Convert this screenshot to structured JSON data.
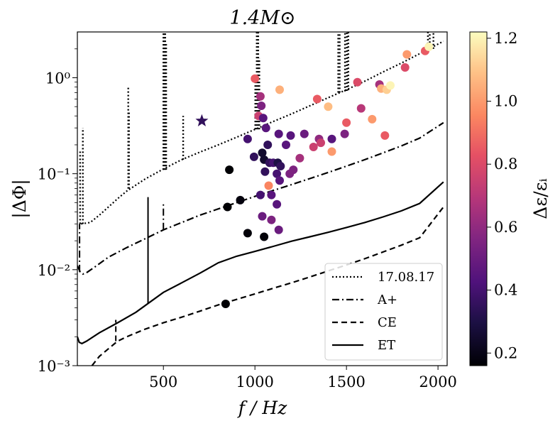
{
  "chart_data": {
    "type": "scatter",
    "title": "1.4M⊙",
    "xlabel": "f / Hz",
    "ylabel": "|ΔΦ|",
    "colorbar_label": "Δε/εᵢ",
    "xlim": [
      30,
      2050
    ],
    "ylim": [
      0.001,
      3.0
    ],
    "yscale": "log",
    "grid": false,
    "legend_location": "lower-right",
    "x_ticks": [
      500,
      1000,
      1500,
      2000
    ],
    "x_tick_labels": [
      "500",
      "1000",
      "1500",
      "2000"
    ],
    "y_ticks": [
      0.001,
      0.01,
      0.1,
      1.0
    ],
    "y_tick_labels": [
      "10⁻³",
      "10⁻²",
      "10⁻¹",
      "10⁰"
    ],
    "colorbar": {
      "colormap": "magma",
      "range": [
        0.16,
        1.22
      ],
      "ticks": [
        0.2,
        0.4,
        0.6,
        0.8,
        1.0,
        1.2
      ],
      "tick_labels": [
        "0.2",
        "0.4",
        "0.6",
        "0.8",
        "1.0",
        "1.2"
      ]
    },
    "curves": [
      {
        "name": "17.08.17",
        "style": "dotted",
        "points": [
          [
            50,
            0.03
          ],
          [
            100,
            0.031
          ],
          [
            150,
            0.037
          ],
          [
            200,
            0.045
          ],
          [
            250,
            0.055
          ],
          [
            300,
            0.066
          ],
          [
            400,
            0.088
          ],
          [
            500,
            0.112
          ],
          [
            600,
            0.14
          ],
          [
            700,
            0.168
          ],
          [
            800,
            0.2
          ],
          [
            900,
            0.24
          ],
          [
            1000,
            0.29
          ],
          [
            1100,
            0.35
          ],
          [
            1200,
            0.42
          ],
          [
            1300,
            0.51
          ],
          [
            1400,
            0.62
          ],
          [
            1500,
            0.75
          ],
          [
            1600,
            0.92
          ],
          [
            1700,
            1.15
          ],
          [
            1800,
            1.42
          ],
          [
            1900,
            1.78
          ],
          [
            2030,
            2.4
          ]
        ],
        "spikes": [
          {
            "x": 45,
            "base": 0.03,
            "top": 0.17
          },
          {
            "x": 60,
            "base": 0.03,
            "top": 0.3
          },
          {
            "x": 308,
            "base": 0.07,
            "top": 0.8
          },
          {
            "x": 312,
            "base": 0.07,
            "top": 0.45
          },
          {
            "x": 500,
            "base": 0.11,
            "top": 3.0
          },
          {
            "x": 505,
            "base": 0.11,
            "top": 3.0
          },
          {
            "x": 510,
            "base": 0.11,
            "top": 3.0
          },
          {
            "x": 515,
            "base": 0.11,
            "top": 2.3
          },
          {
            "x": 608,
            "base": 0.14,
            "top": 0.4
          },
          {
            "x": 1002,
            "base": 0.29,
            "top": 1.0
          },
          {
            "x": 1010,
            "base": 0.29,
            "top": 3.0
          },
          {
            "x": 1018,
            "base": 0.29,
            "top": 3.0
          },
          {
            "x": 1024,
            "base": 0.29,
            "top": 1.6
          },
          {
            "x": 1455,
            "base": 0.7,
            "top": 3.0
          },
          {
            "x": 1463,
            "base": 0.7,
            "top": 3.0
          },
          {
            "x": 1492,
            "base": 0.72,
            "top": 3.0
          },
          {
            "x": 1502,
            "base": 0.73,
            "top": 3.0
          },
          {
            "x": 1510,
            "base": 0.74,
            "top": 3.0
          },
          {
            "x": 1945,
            "base": 1.9,
            "top": 3.0
          },
          {
            "x": 1955,
            "base": 1.95,
            "top": 3.0
          },
          {
            "x": 1975,
            "base": 2.0,
            "top": 3.0
          }
        ]
      },
      {
        "name": "A+",
        "style": "dashdot",
        "points": [
          [
            30,
            0.011
          ],
          [
            45,
            0.0095
          ],
          [
            60,
            0.009
          ],
          [
            80,
            0.0093
          ],
          [
            120,
            0.0105
          ],
          [
            200,
            0.0135
          ],
          [
            300,
            0.017
          ],
          [
            400,
            0.021
          ],
          [
            500,
            0.026
          ],
          [
            600,
            0.031
          ],
          [
            700,
            0.037
          ],
          [
            800,
            0.043
          ],
          [
            900,
            0.05
          ],
          [
            1000,
            0.058
          ],
          [
            1100,
            0.067
          ],
          [
            1200,
            0.077
          ],
          [
            1300,
            0.089
          ],
          [
            1400,
            0.103
          ],
          [
            1500,
            0.12
          ],
          [
            1600,
            0.14
          ],
          [
            1700,
            0.165
          ],
          [
            1800,
            0.195
          ],
          [
            1900,
            0.235
          ],
          [
            2030,
            0.34
          ]
        ],
        "spikes": [
          {
            "x": 42,
            "base": 0.0095,
            "top": 0.03
          },
          {
            "x": 500,
            "base": 0.026,
            "top": 0.05
          }
        ]
      },
      {
        "name": "CE",
        "style": "dashed",
        "points": [
          [
            110,
            0.001
          ],
          [
            150,
            0.00125
          ],
          [
            200,
            0.0015
          ],
          [
            250,
            0.0018
          ],
          [
            300,
            0.002
          ],
          [
            400,
            0.0024
          ],
          [
            500,
            0.0028
          ],
          [
            600,
            0.0032
          ],
          [
            700,
            0.0037
          ],
          [
            800,
            0.0043
          ],
          [
            900,
            0.0049
          ],
          [
            1000,
            0.0056
          ],
          [
            1100,
            0.0064
          ],
          [
            1200,
            0.0073
          ],
          [
            1300,
            0.0084
          ],
          [
            1400,
            0.0097
          ],
          [
            1500,
            0.0112
          ],
          [
            1600,
            0.013
          ],
          [
            1700,
            0.0153
          ],
          [
            1800,
            0.018
          ],
          [
            1900,
            0.0215
          ],
          [
            2030,
            0.045
          ]
        ],
        "spikes": [
          {
            "x": 240,
            "base": 0.0018,
            "top": 0.003
          }
        ]
      },
      {
        "name": "ET",
        "style": "solid",
        "points": [
          [
            30,
            0.002
          ],
          [
            40,
            0.00175
          ],
          [
            55,
            0.0017
          ],
          [
            80,
            0.0018
          ],
          [
            150,
            0.0022
          ],
          [
            250,
            0.0028
          ],
          [
            350,
            0.0036
          ],
          [
            420,
            0.0045
          ],
          [
            500,
            0.0058
          ],
          [
            600,
            0.0073
          ],
          [
            700,
            0.0092
          ],
          [
            800,
            0.0118
          ],
          [
            900,
            0.0138
          ],
          [
            1000,
            0.0155
          ],
          [
            1100,
            0.0175
          ],
          [
            1200,
            0.0198
          ],
          [
            1300,
            0.022
          ],
          [
            1400,
            0.0245
          ],
          [
            1500,
            0.0275
          ],
          [
            1600,
            0.031
          ],
          [
            1700,
            0.0355
          ],
          [
            1800,
            0.041
          ],
          [
            1900,
            0.049
          ],
          [
            2030,
            0.082
          ]
        ],
        "spikes": [
          {
            "x": 416,
            "base": 0.0044,
            "top": 0.057
          }
        ]
      }
    ],
    "star": {
      "x": 710,
      "y": 0.355,
      "c": 0.35
    },
    "points": [
      {
        "x": 1000,
        "y": 0.98,
        "c": 0.85
      },
      {
        "x": 1030,
        "y": 0.64,
        "c": 0.65
      },
      {
        "x": 1135,
        "y": 0.75,
        "c": 1.05
      },
      {
        "x": 1020,
        "y": 0.4,
        "c": 0.75
      },
      {
        "x": 1035,
        "y": 0.51,
        "c": 0.55
      },
      {
        "x": 1045,
        "y": 0.38,
        "c": 0.45
      },
      {
        "x": 1060,
        "y": 0.3,
        "c": 0.45
      },
      {
        "x": 1130,
        "y": 0.26,
        "c": 0.45
      },
      {
        "x": 1195,
        "y": 0.25,
        "c": 0.45
      },
      {
        "x": 1270,
        "y": 0.26,
        "c": 0.5
      },
      {
        "x": 1340,
        "y": 0.6,
        "c": 0.85
      },
      {
        "x": 1400,
        "y": 0.5,
        "c": 1.08
      },
      {
        "x": 1350,
        "y": 0.23,
        "c": 0.6
      },
      {
        "x": 1420,
        "y": 0.23,
        "c": 0.45
      },
      {
        "x": 1490,
        "y": 0.26,
        "c": 0.55
      },
      {
        "x": 1500,
        "y": 0.34,
        "c": 0.85
      },
      {
        "x": 1560,
        "y": 0.9,
        "c": 0.8
      },
      {
        "x": 1580,
        "y": 0.48,
        "c": 0.7
      },
      {
        "x": 1640,
        "y": 0.37,
        "c": 1.0
      },
      {
        "x": 1680,
        "y": 0.85,
        "c": 0.65
      },
      {
        "x": 1690,
        "y": 0.77,
        "c": 1.05
      },
      {
        "x": 1720,
        "y": 0.75,
        "c": 1.12
      },
      {
        "x": 1740,
        "y": 0.83,
        "c": 1.2
      },
      {
        "x": 1710,
        "y": 0.25,
        "c": 0.85
      },
      {
        "x": 1830,
        "y": 1.75,
        "c": 1.0
      },
      {
        "x": 1820,
        "y": 1.28,
        "c": 0.8
      },
      {
        "x": 1930,
        "y": 1.9,
        "c": 0.85
      },
      {
        "x": 1950,
        "y": 2.1,
        "c": 1.2
      },
      {
        "x": 960,
        "y": 0.23,
        "c": 0.4
      },
      {
        "x": 995,
        "y": 0.15,
        "c": 0.35
      },
      {
        "x": 1040,
        "y": 0.165,
        "c": 0.25
      },
      {
        "x": 1050,
        "y": 0.14,
        "c": 0.25
      },
      {
        "x": 1070,
        "y": 0.2,
        "c": 0.35
      },
      {
        "x": 1080,
        "y": 0.13,
        "c": 0.35
      },
      {
        "x": 1100,
        "y": 0.13,
        "c": 0.4
      },
      {
        "x": 1125,
        "y": 0.13,
        "c": 0.3
      },
      {
        "x": 1140,
        "y": 0.12,
        "c": 0.35
      },
      {
        "x": 1170,
        "y": 0.2,
        "c": 0.45
      },
      {
        "x": 1190,
        "y": 0.1,
        "c": 0.55
      },
      {
        "x": 1210,
        "y": 0.11,
        "c": 0.55
      },
      {
        "x": 1245,
        "y": 0.145,
        "c": 0.65
      },
      {
        "x": 1320,
        "y": 0.19,
        "c": 0.75
      },
      {
        "x": 1360,
        "y": 0.21,
        "c": 0.75
      },
      {
        "x": 1420,
        "y": 0.17,
        "c": 1.0
      },
      {
        "x": 1055,
        "y": 0.105,
        "c": 0.35
      },
      {
        "x": 1120,
        "y": 0.1,
        "c": 0.4
      },
      {
        "x": 1135,
        "y": 0.085,
        "c": 0.45
      },
      {
        "x": 1075,
        "y": 0.075,
        "c": 0.95
      },
      {
        "x": 1030,
        "y": 0.06,
        "c": 0.4
      },
      {
        "x": 1090,
        "y": 0.06,
        "c": 0.45
      },
      {
        "x": 1120,
        "y": 0.048,
        "c": 0.45
      },
      {
        "x": 1040,
        "y": 0.036,
        "c": 0.5
      },
      {
        "x": 1090,
        "y": 0.033,
        "c": 0.55
      },
      {
        "x": 1130,
        "y": 0.026,
        "c": 0.5
      },
      {
        "x": 860,
        "y": 0.11,
        "c": 0.16
      },
      {
        "x": 920,
        "y": 0.053,
        "c": 0.18
      },
      {
        "x": 850,
        "y": 0.045,
        "c": 0.16
      },
      {
        "x": 960,
        "y": 0.024,
        "c": 0.17
      },
      {
        "x": 1050,
        "y": 0.022,
        "c": 0.17
      },
      {
        "x": 840,
        "y": 0.0044,
        "c": 0.16
      }
    ]
  }
}
